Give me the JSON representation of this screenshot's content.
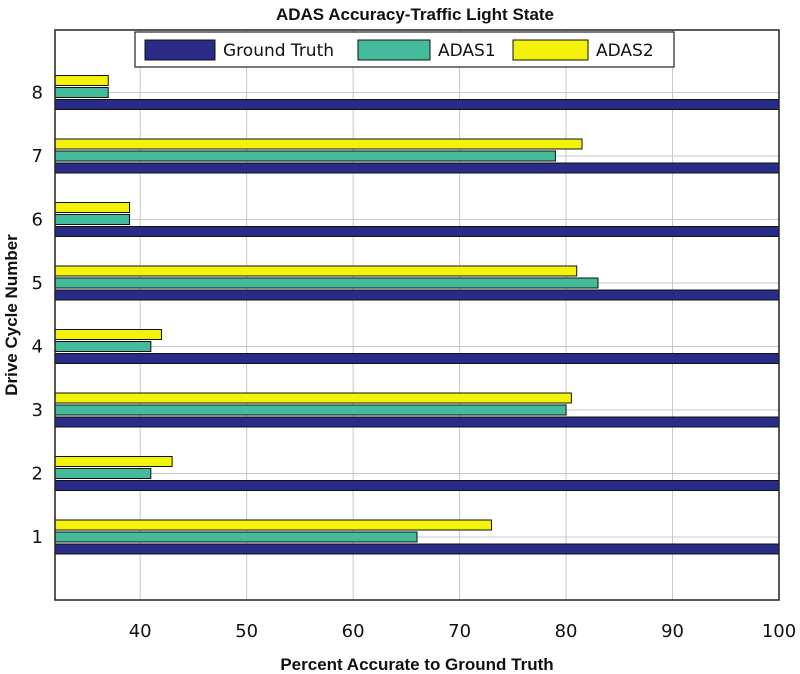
{
  "chart_data": {
    "type": "bar",
    "orientation": "horizontal",
    "title": "ADAS Accuracy-Traffic Light State",
    "xlabel": "Percent Accurate to Ground Truth",
    "ylabel": "Drive Cycle Number",
    "xlim": [
      32,
      100
    ],
    "x_ticks": [
      40,
      50,
      60,
      70,
      80,
      90,
      100
    ],
    "categories": [
      "1",
      "2",
      "3",
      "4",
      "5",
      "6",
      "7",
      "8"
    ],
    "series": [
      {
        "name": "Ground Truth",
        "color": "#2a2a87",
        "values": [
          100,
          100,
          100,
          100,
          100,
          100,
          100,
          100
        ]
      },
      {
        "name": "ADAS1",
        "color": "#44bc9c",
        "values": [
          66,
          41,
          80,
          41,
          83,
          39,
          79,
          37
        ]
      },
      {
        "name": "ADAS2",
        "color": "#f2f20a",
        "values": [
          73,
          43,
          80.5,
          42,
          81,
          39,
          81.5,
          37
        ]
      }
    ],
    "grid": true,
    "legend": "top-center"
  }
}
